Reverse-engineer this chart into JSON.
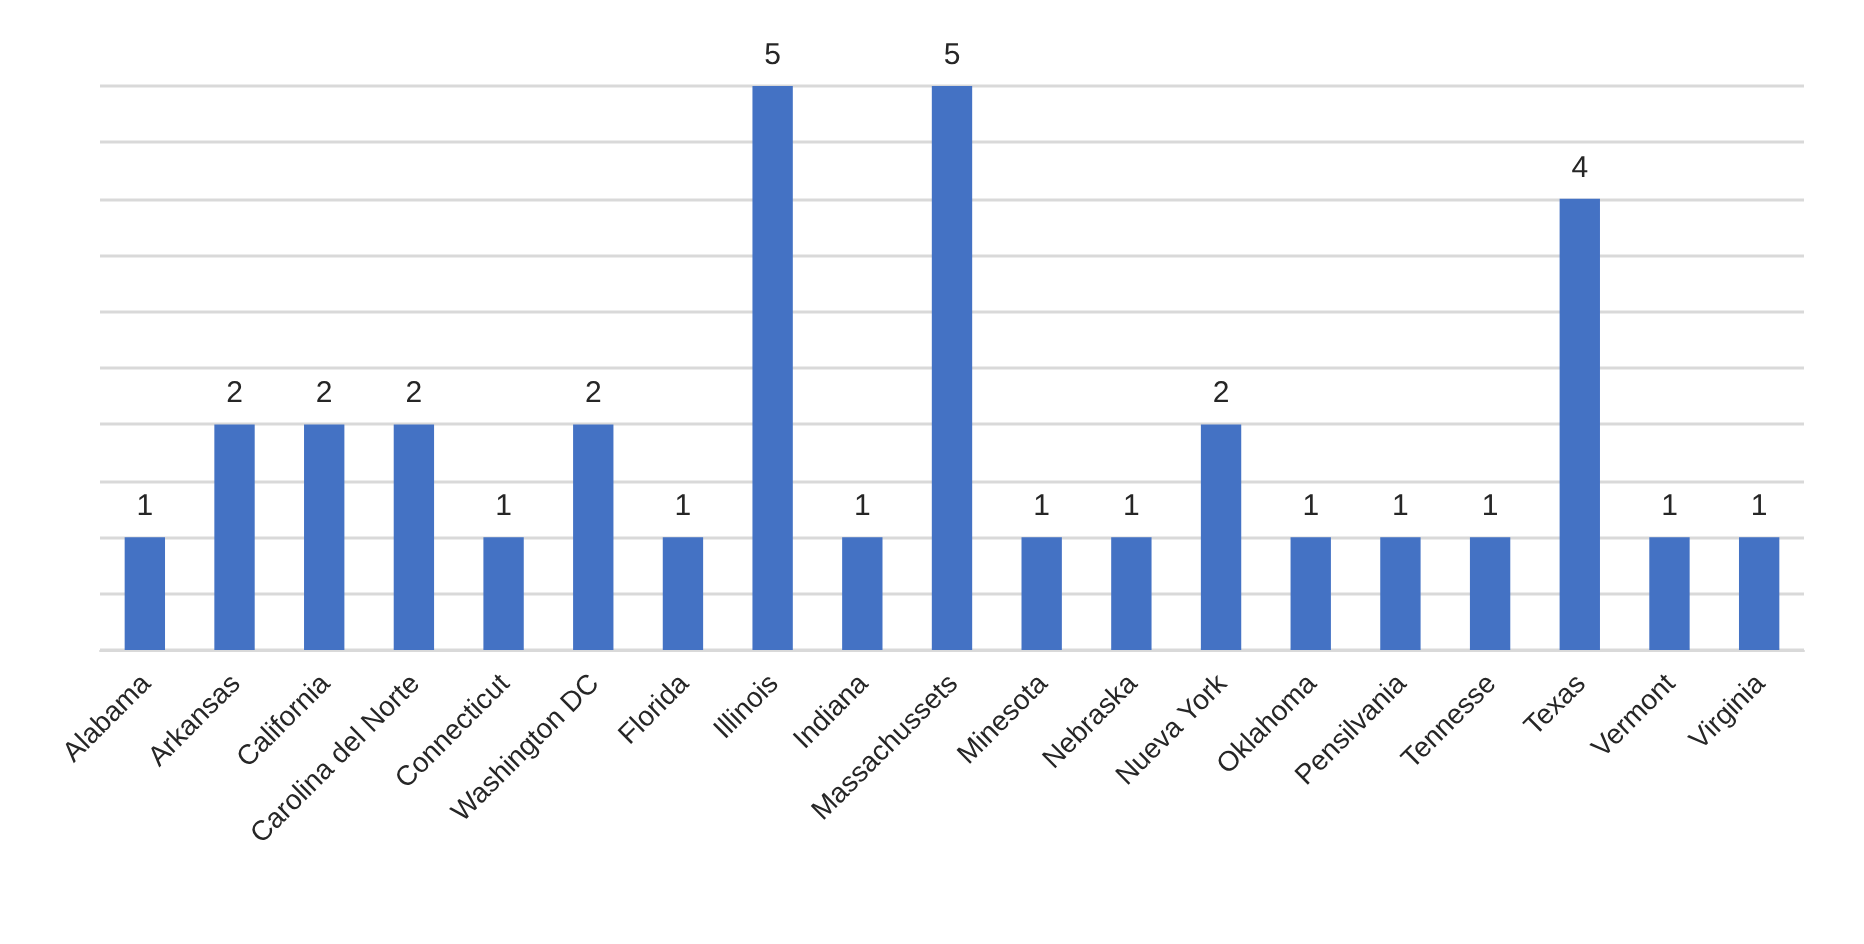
{
  "chart_data": {
    "type": "bar",
    "categories": [
      "Alabama",
      "Arkansas",
      "California",
      "Carolina del Norte",
      "Connecticut",
      "Washington DC",
      "Florida",
      "Illinois",
      "Indiana",
      "Massachussets",
      "Minesota",
      "Nebraska",
      "Nueva York",
      "Oklahoma",
      "Pensilvania",
      "Tennesse",
      "Texas",
      "Vermont",
      "Virginia"
    ],
    "values": [
      1,
      2,
      2,
      2,
      1,
      2,
      1,
      5,
      1,
      5,
      1,
      1,
      2,
      1,
      1,
      1,
      4,
      1,
      1
    ],
    "color": "#4472c4",
    "ylim": [
      0,
      5
    ],
    "yticks": [
      0,
      0.5,
      1,
      1.5,
      2,
      2.5,
      3,
      3.5,
      4,
      4.5,
      5
    ],
    "grid": "y",
    "tick_labels": "x",
    "data_labels": true
  }
}
